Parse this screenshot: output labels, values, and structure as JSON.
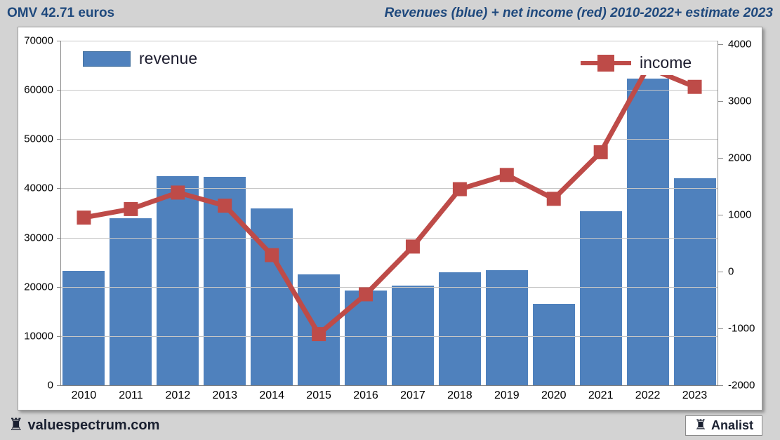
{
  "header": {
    "left_title": "OMV 42.71 euros",
    "right_title": "Revenues (blue) + net income (red) 2010-2022+ estimate 2023"
  },
  "legend": {
    "revenue_label": "revenue",
    "income_label": "income"
  },
  "footer": {
    "site": "valuespectrum.com",
    "brand": "Analist",
    "rook_glyph": "♜"
  },
  "colors": {
    "bar_blue": "#4f81bd",
    "line_red": "#be4b48",
    "title_navy": "#1f497d",
    "grid_gray": "#c6c6c6",
    "page_bg": "#d3d3d3",
    "panel_bg": "#ffffff"
  },
  "chart_data": {
    "type": "bar+line combo",
    "title": "Revenues (blue) + net income (red) 2010-2022+ estimate 2023",
    "categories": [
      2010,
      2011,
      2012,
      2013,
      2014,
      2015,
      2016,
      2017,
      2018,
      2019,
      2020,
      2021,
      2022,
      2023
    ],
    "series": [
      {
        "name": "revenue",
        "type": "bar",
        "axis": "left",
        "color": "#4f81bd",
        "values": [
          23300,
          34000,
          42500,
          42400,
          35900,
          22500,
          19300,
          20200,
          22900,
          23400,
          16600,
          35400,
          62300,
          42000
        ]
      },
      {
        "name": "income",
        "type": "line",
        "axis": "right",
        "color": "#be4b48",
        "values": [
          950,
          1100,
          1390,
          1160,
          290,
          -1100,
          -400,
          440,
          1450,
          1700,
          1280,
          2100,
          3590,
          3250
        ]
      }
    ],
    "left_axis": {
      "min": 0,
      "max": 70000,
      "step": 10000,
      "ticks": [
        0,
        10000,
        20000,
        30000,
        40000,
        50000,
        60000,
        70000
      ]
    },
    "right_axis": {
      "min": -2000,
      "max": 4000,
      "step": 1000,
      "ticks": [
        -2000,
        -1000,
        0,
        1000,
        2000,
        3000,
        4000
      ]
    },
    "grid": "horizontal gridlines every 10000 on left axis",
    "legend_position": "revenue top-left inside plot, income top-right inside plot"
  }
}
